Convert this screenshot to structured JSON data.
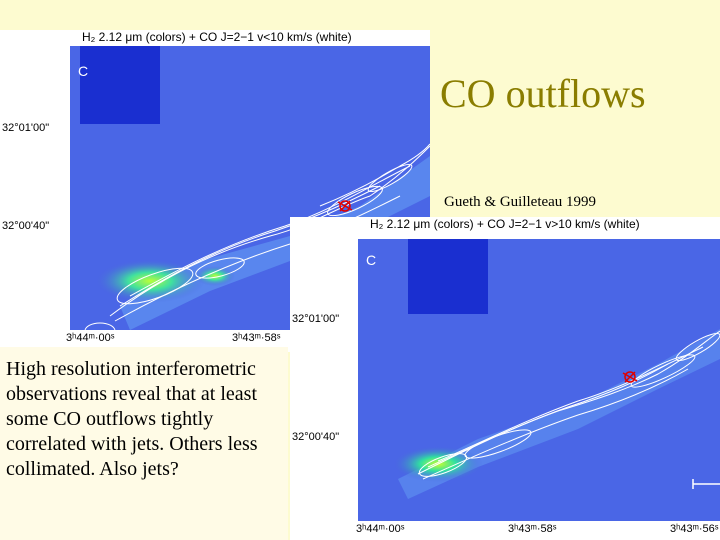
{
  "slide": {
    "title": "CO outflows",
    "citation": "Gueth & Guilleteau 1999",
    "caption": "High resolution interferometric observations reveal that at least some CO outflows tightly correlated with jets.  Others less collimated.  Also jets?"
  },
  "panel1": {
    "header": "H₂ 2.12 μm (colors) + CO J=2−1 v<10 km/s (white)",
    "panel_letter": "C",
    "y_ticks": [
      "32°01'00\"",
      "32°00'40\""
    ],
    "x_ticks": [
      "3ʰ44ᵐ·00ˢ",
      "3ʰ43ᵐ·58ˢ"
    ]
  },
  "panel2": {
    "header": "H₂ 2.12 μm (colors) + CO J=2−1 v>10 km/s (white)",
    "panel_letter": "C",
    "y_ticks": [
      "32°01'00\"",
      "32°00'40\""
    ],
    "x_ticks": [
      "3ʰ44ᵐ·00ˢ",
      "3ʰ43ᵐ·58ˢ",
      "3ʰ43ᵐ·56ˢ"
    ]
  },
  "colors": {
    "background": "#fdfbd0",
    "title": "#8a7d00",
    "map_blue": "#4a5fe0",
    "contour_white": "#ffffff",
    "source_red": "#e00000"
  }
}
